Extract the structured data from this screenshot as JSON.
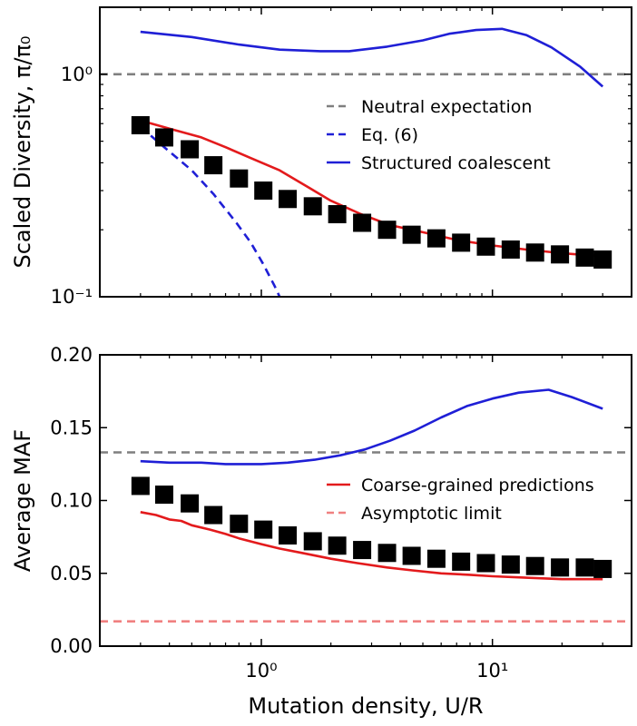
{
  "chart_data": [
    {
      "type": "line",
      "panel": "top",
      "ylabel": "Scaled Diversity, π/π₀",
      "xlabel": "",
      "xscale": "log",
      "yscale": "log",
      "xlim": [
        0.2,
        40
      ],
      "ylim": [
        0.1,
        2.0
      ],
      "xticks": [
        {
          "value": 1,
          "label": "10⁰"
        },
        {
          "value": 10,
          "label": "10¹"
        }
      ],
      "yticks": [
        {
          "value": 0.1,
          "label": "10⁻¹"
        },
        {
          "value": 1,
          "label": "10⁰"
        }
      ],
      "grid": false,
      "legend_position": "upper-right",
      "series": [
        {
          "name": "Neutral expectation",
          "style": "dashed",
          "color": "#7f7f7f",
          "x": [
            0.2,
            40
          ],
          "y": [
            1.0,
            1.0
          ]
        },
        {
          "name": "Eq. (6)",
          "style": "dashed",
          "color": "#1f1fd6",
          "x": [
            0.3,
            0.38,
            0.5,
            0.62,
            0.78,
            0.9,
            1.02,
            1.14,
            1.2
          ],
          "y": [
            0.58,
            0.47,
            0.37,
            0.29,
            0.215,
            0.175,
            0.14,
            0.112,
            0.1
          ]
        },
        {
          "name": "Structured coalescent",
          "style": "solid",
          "color": "#1f1fd6",
          "x": [
            0.3,
            0.5,
            0.8,
            1.2,
            1.8,
            2.4,
            3.5,
            5.0,
            6.5,
            8.5,
            11.0,
            14.0,
            18.0,
            24.0,
            30.0
          ],
          "y": [
            1.55,
            1.47,
            1.36,
            1.29,
            1.27,
            1.27,
            1.33,
            1.42,
            1.52,
            1.58,
            1.6,
            1.5,
            1.32,
            1.08,
            0.88
          ]
        },
        {
          "name": "",
          "style": "solid",
          "color": "#e31a1c",
          "x": [
            0.3,
            0.4,
            0.55,
            0.7,
            0.9,
            1.2,
            1.6,
            2.0,
            2.7,
            3.6,
            5.0,
            7.0,
            10.0,
            14.0,
            20.0,
            30.0
          ],
          "y": [
            0.62,
            0.57,
            0.52,
            0.47,
            0.42,
            0.37,
            0.31,
            0.27,
            0.235,
            0.21,
            0.195,
            0.18,
            0.17,
            0.163,
            0.157,
            0.152
          ]
        },
        {
          "name": "",
          "style": "markers",
          "color": "#000000",
          "x": [
            0.3,
            0.38,
            0.49,
            0.62,
            0.8,
            1.02,
            1.3,
            1.67,
            2.13,
            2.73,
            3.5,
            4.47,
            5.72,
            7.32,
            9.37,
            12.0,
            15.3,
            19.6,
            25.1,
            30.0
          ],
          "y": [
            0.59,
            0.52,
            0.46,
            0.39,
            0.34,
            0.3,
            0.275,
            0.255,
            0.235,
            0.215,
            0.2,
            0.19,
            0.183,
            0.175,
            0.168,
            0.163,
            0.158,
            0.155,
            0.15,
            0.147
          ]
        }
      ]
    },
    {
      "type": "line",
      "panel": "bottom",
      "ylabel": "Average MAF",
      "xlabel": "Mutation density, U/R",
      "xscale": "log",
      "yscale": "linear",
      "xlim": [
        0.2,
        40
      ],
      "ylim": [
        0.0,
        0.2
      ],
      "xticks": [
        {
          "value": 1,
          "label": "10⁰"
        },
        {
          "value": 10,
          "label": "10¹"
        }
      ],
      "yticks": [
        {
          "value": 0.0,
          "label": "0.00"
        },
        {
          "value": 0.05,
          "label": "0.05"
        },
        {
          "value": 0.1,
          "label": "0.10"
        },
        {
          "value": 0.15,
          "label": "0.15"
        },
        {
          "value": 0.2,
          "label": "0.20"
        }
      ],
      "grid": false,
      "legend_position": "lower-right",
      "series": [
        {
          "name": "",
          "style": "dashed",
          "color": "#7f7f7f",
          "x": [
            0.2,
            40
          ],
          "y": [
            0.133,
            0.133
          ]
        },
        {
          "name": "",
          "style": "solid",
          "color": "#1f1fd6",
          "x": [
            0.3,
            0.4,
            0.55,
            0.7,
            0.85,
            1.0,
            1.3,
            1.7,
            2.2,
            2.8,
            3.6,
            4.6,
            6.0,
            7.8,
            10.0,
            13.0,
            17.5,
            22.0,
            30.0
          ],
          "y": [
            0.127,
            0.126,
            0.126,
            0.125,
            0.125,
            0.125,
            0.126,
            0.128,
            0.131,
            0.135,
            0.141,
            0.148,
            0.157,
            0.165,
            0.17,
            0.174,
            0.176,
            0.171,
            0.163
          ]
        },
        {
          "name": "Coarse-grained predictions",
          "style": "solid",
          "color": "#e31a1c",
          "x": [
            0.3,
            0.35,
            0.4,
            0.45,
            0.5,
            0.6,
            0.7,
            0.8,
            1.0,
            1.2,
            1.5,
            2.0,
            2.6,
            3.5,
            4.5,
            6.0,
            8.0,
            10.0,
            14.0,
            20.0,
            30.0
          ],
          "y": [
            0.092,
            0.09,
            0.087,
            0.086,
            0.083,
            0.08,
            0.077,
            0.074,
            0.07,
            0.067,
            0.064,
            0.06,
            0.057,
            0.054,
            0.052,
            0.05,
            0.049,
            0.048,
            0.047,
            0.046,
            0.046
          ]
        },
        {
          "name": "Asymptotic limit",
          "style": "dashed",
          "color": "#f08080",
          "x": [
            0.2,
            40
          ],
          "y": [
            0.017,
            0.017
          ]
        },
        {
          "name": "",
          "style": "markers",
          "color": "#000000",
          "x": [
            0.3,
            0.38,
            0.49,
            0.62,
            0.8,
            1.02,
            1.3,
            1.67,
            2.13,
            2.73,
            3.5,
            4.47,
            5.72,
            7.32,
            9.37,
            12.0,
            15.3,
            19.6,
            25.1,
            30.0
          ],
          "y": [
            0.11,
            0.104,
            0.098,
            0.09,
            0.084,
            0.08,
            0.076,
            0.072,
            0.069,
            0.066,
            0.064,
            0.062,
            0.06,
            0.058,
            0.057,
            0.056,
            0.055,
            0.054,
            0.054,
            0.053
          ]
        }
      ]
    }
  ]
}
